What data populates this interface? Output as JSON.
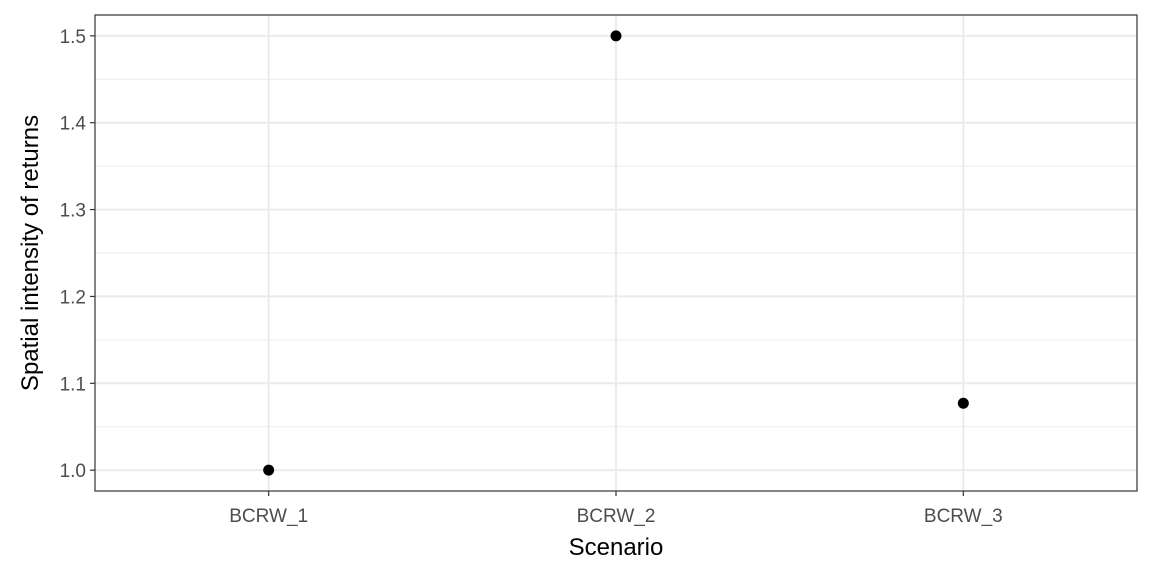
{
  "chart_data": {
    "type": "scatter",
    "title": "",
    "xlabel": "Scenario",
    "ylabel": "Spatial intensity of returns",
    "categories": [
      "BCRW_1",
      "BCRW_2",
      "BCRW_3"
    ],
    "values": [
      1.0,
      1.5,
      1.077
    ],
    "ylim": [
      0.976,
      1.524
    ],
    "yticks": [
      1.0,
      1.1,
      1.2,
      1.3,
      1.4,
      1.5
    ],
    "ytick_labels": [
      "1.0",
      "1.1",
      "1.2",
      "1.3",
      "1.4",
      "1.5"
    ],
    "grid": true,
    "legend": "none",
    "point_color": "#000000",
    "grid_color": "#ebebeb",
    "panel_border_color": "#333333"
  }
}
